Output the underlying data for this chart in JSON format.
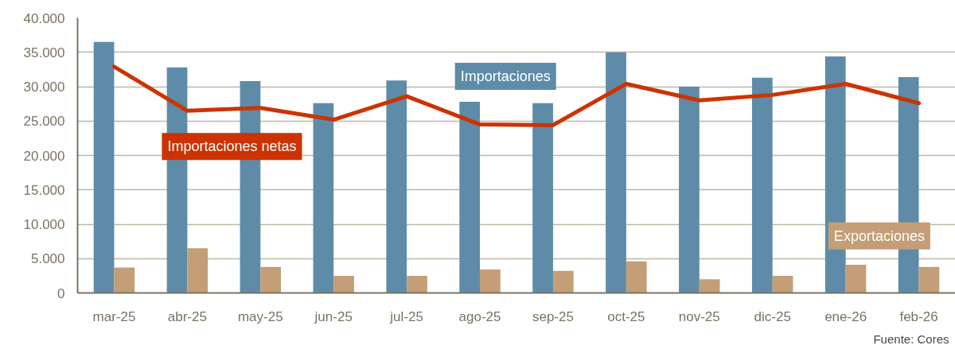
{
  "chart_data": {
    "type": "bar",
    "categories": [
      "mar-25",
      "abr-25",
      "may-25",
      "jun-25",
      "jul-25",
      "ago-25",
      "sep-25",
      "oct-25",
      "nov-25",
      "dic-25",
      "ene-26",
      "feb-26"
    ],
    "series": [
      {
        "name": "Importaciones",
        "color": "#5e8ca8",
        "values": [
          36500,
          32800,
          30800,
          27600,
          30900,
          27800,
          27600,
          35000,
          30000,
          31300,
          34400,
          31400
        ]
      },
      {
        "name": "Exportaciones",
        "color": "#c39e76",
        "values": [
          3700,
          6500,
          3800,
          2500,
          2500,
          3400,
          3200,
          4600,
          2000,
          2500,
          4100,
          3800
        ]
      },
      {
        "name": "Importaciones netas",
        "color": "#cc3300",
        "type": "line",
        "values": [
          32900,
          26500,
          26900,
          25200,
          28600,
          24500,
          24400,
          30400,
          28000,
          28800,
          30400,
          27600
        ]
      }
    ],
    "ylim": [
      0,
      40000
    ],
    "yticks": [
      {
        "value": 0,
        "label": "0"
      },
      {
        "value": 5000,
        "label": "5.000"
      },
      {
        "value": 10000,
        "label": "10.000"
      },
      {
        "value": 15000,
        "label": "15.000"
      },
      {
        "value": 20000,
        "label": "20.000"
      },
      {
        "value": 25000,
        "label": "25.000"
      },
      {
        "value": 30000,
        "label": "30.000"
      },
      {
        "value": 35000,
        "label": "35.000"
      },
      {
        "value": 40000,
        "label": "40.000"
      }
    ],
    "grid": "y",
    "annotations": [
      "Fuente: Cores"
    ]
  }
}
